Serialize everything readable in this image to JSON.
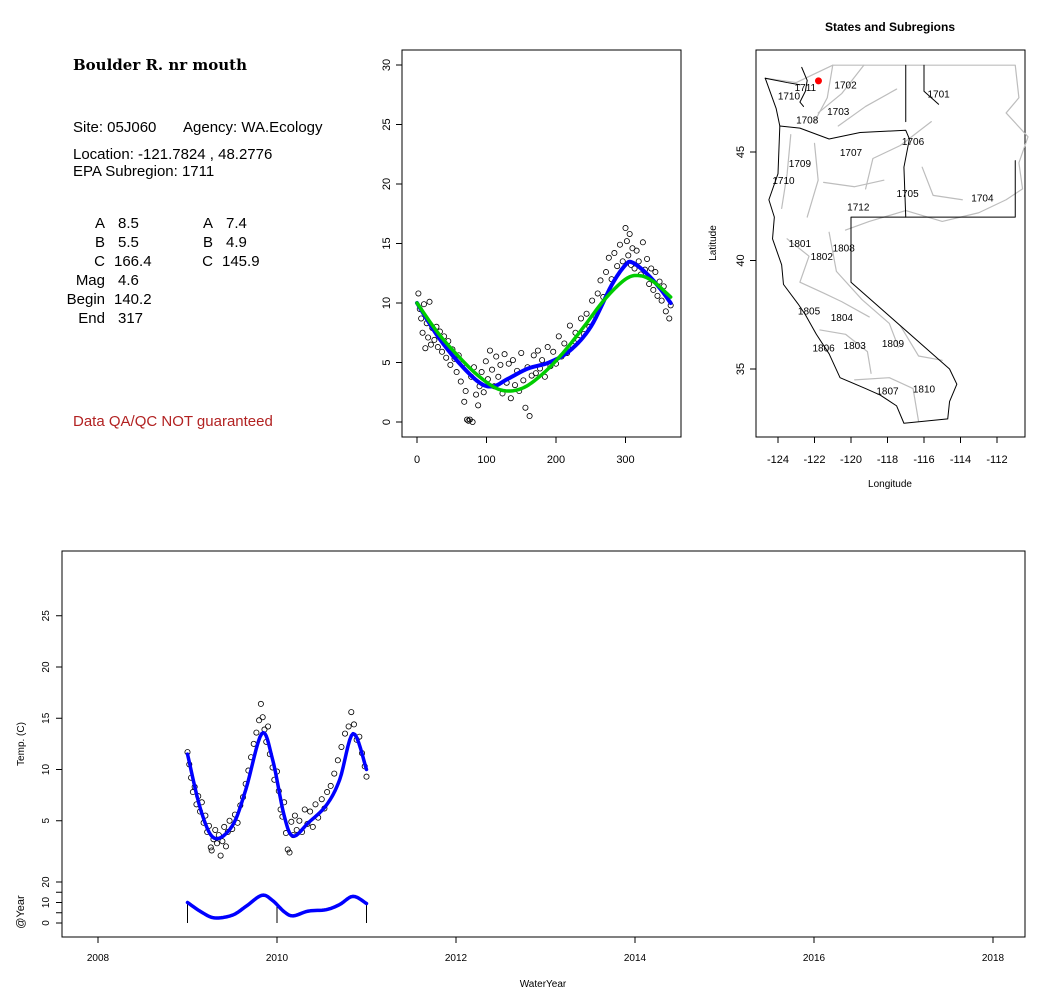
{
  "site_info": {
    "title": "Boulder R. nr mouth",
    "site": "Site: 05J060",
    "agency": "Agency: WA.Ecology",
    "location": "Location: -121.7824 , 48.2776",
    "subregion": "EPA Subregion: 1711",
    "qa_note": "Data QA/QC NOT guaranteed",
    "params_left": [
      {
        "label": "A",
        "value": "8.5"
      },
      {
        "label": "B",
        "value": "5.5"
      },
      {
        "label": "C",
        "value": "166.4"
      },
      {
        "label": "Mag",
        "value": "4.6"
      },
      {
        "label": "Begin",
        "value": "140.2"
      },
      {
        "label": "End",
        "value": "317"
      }
    ],
    "params_right": [
      {
        "label": "A",
        "value": "7.4"
      },
      {
        "label": "B",
        "value": "4.9"
      },
      {
        "label": "C",
        "value": "145.9"
      }
    ]
  },
  "chart_data": [
    {
      "type": "scatter",
      "title": "",
      "xlabel": "",
      "ylabel": "",
      "xlim": [
        -5,
        370
      ],
      "ylim": [
        -1,
        31
      ],
      "xticks": [
        "0",
        "100",
        "200",
        "300"
      ],
      "yticks": [
        "0",
        "5",
        "10",
        "15",
        "20",
        "25",
        "30"
      ],
      "points": [
        [
          2,
          10.8
        ],
        [
          4,
          9.5
        ],
        [
          6,
          8.7
        ],
        [
          8,
          7.5
        ],
        [
          10,
          9.9
        ],
        [
          12,
          6.2
        ],
        [
          14,
          8.3
        ],
        [
          16,
          7.1
        ],
        [
          18,
          10.1
        ],
        [
          20,
          6.5
        ],
        [
          22,
          7.9
        ],
        [
          25,
          6.9
        ],
        [
          28,
          8.0
        ],
        [
          30,
          6.3
        ],
        [
          33,
          7.6
        ],
        [
          36,
          5.9
        ],
        [
          39,
          7.2
        ],
        [
          42,
          5.4
        ],
        [
          45,
          6.8
        ],
        [
          48,
          4.8
        ],
        [
          51,
          6.1
        ],
        [
          54,
          5.3
        ],
        [
          57,
          4.2
        ],
        [
          60,
          5.6
        ],
        [
          63,
          3.4
        ],
        [
          66,
          4.9
        ],
        [
          68,
          1.7
        ],
        [
          70,
          2.6
        ],
        [
          72,
          0.2
        ],
        [
          74,
          0.1
        ],
        [
          76,
          0.2
        ],
        [
          78,
          3.8
        ],
        [
          80,
          0.0
        ],
        [
          82,
          4.6
        ],
        [
          85,
          2.3
        ],
        [
          88,
          1.4
        ],
        [
          90,
          3.0
        ],
        [
          93,
          4.2
        ],
        [
          96,
          2.5
        ],
        [
          99,
          5.1
        ],
        [
          102,
          3.6
        ],
        [
          105,
          6.0
        ],
        [
          108,
          4.4
        ],
        [
          111,
          3.0
        ],
        [
          114,
          5.5
        ],
        [
          117,
          3.8
        ],
        [
          120,
          4.8
        ],
        [
          123,
          2.4
        ],
        [
          126,
          5.7
        ],
        [
          129,
          3.3
        ],
        [
          132,
          4.9
        ],
        [
          135,
          2.0
        ],
        [
          138,
          5.2
        ],
        [
          141,
          3.1
        ],
        [
          144,
          4.3
        ],
        [
          147,
          2.6
        ],
        [
          150,
          5.8
        ],
        [
          153,
          3.5
        ],
        [
          156,
          1.2
        ],
        [
          159,
          4.6
        ],
        [
          162,
          0.5
        ],
        [
          165,
          3.9
        ],
        [
          168,
          5.6
        ],
        [
          171,
          4.1
        ],
        [
          174,
          6.0
        ],
        [
          177,
          4.5
        ],
        [
          180,
          5.2
        ],
        [
          184,
          3.8
        ],
        [
          188,
          6.3
        ],
        [
          192,
          4.7
        ],
        [
          196,
          5.9
        ],
        [
          200,
          4.9
        ],
        [
          204,
          7.2
        ],
        [
          208,
          5.5
        ],
        [
          212,
          6.6
        ],
        [
          216,
          5.8
        ],
        [
          220,
          8.1
        ],
        [
          224,
          6.4
        ],
        [
          228,
          7.5
        ],
        [
          232,
          6.9
        ],
        [
          236,
          8.7
        ],
        [
          240,
          7.4
        ],
        [
          244,
          9.1
        ],
        [
          248,
          8.0
        ],
        [
          252,
          10.2
        ],
        [
          256,
          9.0
        ],
        [
          260,
          10.8
        ],
        [
          264,
          11.9
        ],
        [
          268,
          10.5
        ],
        [
          272,
          12.6
        ],
        [
          276,
          13.8
        ],
        [
          280,
          12.0
        ],
        [
          284,
          14.2
        ],
        [
          288,
          13.1
        ],
        [
          292,
          14.9
        ],
        [
          296,
          13.5
        ],
        [
          300,
          16.3
        ],
        [
          302,
          15.2
        ],
        [
          304,
          14.0
        ],
        [
          306,
          15.8
        ],
        [
          308,
          13.2
        ],
        [
          310,
          14.6
        ],
        [
          313,
          12.9
        ],
        [
          316,
          14.4
        ],
        [
          319,
          13.5
        ],
        [
          322,
          12.4
        ],
        [
          325,
          15.1
        ],
        [
          328,
          12.8
        ],
        [
          331,
          13.7
        ],
        [
          334,
          11.6
        ],
        [
          337,
          12.9
        ],
        [
          340,
          11.1
        ],
        [
          343,
          12.6
        ],
        [
          346,
          10.6
        ],
        [
          349,
          11.8
        ],
        [
          352,
          10.2
        ],
        [
          355,
          11.4
        ],
        [
          358,
          9.3
        ],
        [
          361,
          10.5
        ],
        [
          363,
          8.7
        ],
        [
          365,
          9.8
        ]
      ],
      "series": [
        {
          "name": "fit-blue",
          "color": "#0000ff",
          "x": [
            0,
            30,
            60,
            90,
            110,
            130,
            160,
            190,
            220,
            250,
            280,
            300,
            310,
            330,
            350,
            365
          ],
          "y": [
            10,
            7.2,
            5,
            3.3,
            3,
            3.6,
            4.5,
            5,
            6,
            8,
            11.5,
            13.2,
            13.4,
            12.5,
            11.2,
            10
          ]
        },
        {
          "name": "fit-green",
          "color": "#00cc00",
          "x": [
            0,
            30,
            60,
            90,
            120,
            150,
            180,
            210,
            240,
            270,
            300,
            320,
            340,
            365
          ],
          "y": [
            10,
            7.5,
            5.5,
            3.8,
            2.7,
            2.8,
            4,
            5.8,
            8,
            10.3,
            12,
            12.3,
            11.8,
            10.5
          ]
        }
      ]
    },
    {
      "type": "map",
      "title": "States and Subregions",
      "xlabel": "Longitude",
      "ylabel": "Latitude",
      "xlim": [
        -125.2,
        -110.5
      ],
      "ylim": [
        32.3,
        49.6
      ],
      "xticks": [
        "-124",
        "-122",
        "-120",
        "-118",
        "-116",
        "-114",
        "-112"
      ],
      "yticks": [
        "35",
        "40",
        "45"
      ],
      "site": {
        "lon": -121.7824,
        "lat": 48.2776,
        "color": "#ff0000"
      },
      "labels": [
        {
          "text": "1711",
          "lon": -122.5,
          "lat": 48.0
        },
        {
          "text": "1702",
          "lon": -120.3,
          "lat": 48.1
        },
        {
          "text": "1701",
          "lon": -115.2,
          "lat": 47.7
        },
        {
          "text": "1710",
          "lon": -123.4,
          "lat": 47.6
        },
        {
          "text": "1703",
          "lon": -120.7,
          "lat": 46.9
        },
        {
          "text": "1708",
          "lon": -122.4,
          "lat": 46.5
        },
        {
          "text": "1706",
          "lon": -116.6,
          "lat": 45.5
        },
        {
          "text": "1707",
          "lon": -120.0,
          "lat": 45.0
        },
        {
          "text": "1709",
          "lon": -122.8,
          "lat": 44.5
        },
        {
          "text": "1710",
          "lon": -123.7,
          "lat": 43.7
        },
        {
          "text": "1705",
          "lon": -116.9,
          "lat": 43.1
        },
        {
          "text": "1704",
          "lon": -112.8,
          "lat": 42.9
        },
        {
          "text": "1712",
          "lon": -119.6,
          "lat": 42.5
        },
        {
          "text": "1801",
          "lon": -122.8,
          "lat": 40.8
        },
        {
          "text": "1808",
          "lon": -120.4,
          "lat": 40.6
        },
        {
          "text": "1802",
          "lon": -121.6,
          "lat": 40.2
        },
        {
          "text": "1805",
          "lon": -122.3,
          "lat": 37.7
        },
        {
          "text": "1804",
          "lon": -120.5,
          "lat": 37.4
        },
        {
          "text": "1806",
          "lon": -121.5,
          "lat": 36.0
        },
        {
          "text": "1803",
          "lon": -119.8,
          "lat": 36.1
        },
        {
          "text": "1809",
          "lon": -117.7,
          "lat": 36.2
        },
        {
          "text": "1807",
          "lon": -118.0,
          "lat": 34.0
        },
        {
          "text": "1810",
          "lon": -116.0,
          "lat": 34.1
        }
      ]
    },
    {
      "type": "line",
      "title": "",
      "xlabel": "WaterYear",
      "ylabel": "Temp. (C)",
      "ylabel2": "@Year",
      "xlim": [
        2007.6,
        2018.4
      ],
      "xticks": [
        "2008",
        "2010",
        "2012",
        "2014",
        "2016",
        "2018"
      ],
      "yticks": [
        "5",
        "10",
        "15",
        "20",
        "25"
      ],
      "yticks2": [
        "0",
        "10",
        "20"
      ],
      "points": [
        [
          2009.0,
          11.7
        ],
        [
          2009.02,
          10.5
        ],
        [
          2009.04,
          9.2
        ],
        [
          2009.06,
          7.8
        ],
        [
          2009.08,
          8.3
        ],
        [
          2009.1,
          6.6
        ],
        [
          2009.12,
          7.4
        ],
        [
          2009.14,
          5.9
        ],
        [
          2009.16,
          6.8
        ],
        [
          2009.18,
          4.8
        ],
        [
          2009.2,
          5.5
        ],
        [
          2009.22,
          3.9
        ],
        [
          2009.24,
          4.5
        ],
        [
          2009.26,
          2.4
        ],
        [
          2009.27,
          2.1
        ],
        [
          2009.29,
          3.2
        ],
        [
          2009.31,
          4.1
        ],
        [
          2009.33,
          2.8
        ],
        [
          2009.35,
          3.6
        ],
        [
          2009.37,
          1.6
        ],
        [
          2009.39,
          3.0
        ],
        [
          2009.41,
          4.4
        ],
        [
          2009.43,
          2.5
        ],
        [
          2009.45,
          3.9
        ],
        [
          2009.47,
          5.0
        ],
        [
          2009.5,
          4.2
        ],
        [
          2009.53,
          5.6
        ],
        [
          2009.56,
          4.8
        ],
        [
          2009.59,
          6.5
        ],
        [
          2009.62,
          7.3
        ],
        [
          2009.65,
          8.6
        ],
        [
          2009.68,
          9.9
        ],
        [
          2009.71,
          11.2
        ],
        [
          2009.74,
          12.5
        ],
        [
          2009.77,
          13.6
        ],
        [
          2009.8,
          14.8
        ],
        [
          2009.82,
          16.4
        ],
        [
          2009.84,
          15.1
        ],
        [
          2009.86,
          13.9
        ],
        [
          2009.88,
          12.7
        ],
        [
          2009.9,
          14.2
        ],
        [
          2009.92,
          11.5
        ],
        [
          2009.95,
          10.2
        ],
        [
          2009.97,
          9.0
        ],
        [
          2010.0,
          9.8
        ],
        [
          2010.02,
          7.9
        ],
        [
          2010.04,
          6.1
        ],
        [
          2010.06,
          5.4
        ],
        [
          2010.08,
          6.8
        ],
        [
          2010.1,
          3.8
        ],
        [
          2010.12,
          2.2
        ],
        [
          2010.14,
          1.9
        ],
        [
          2010.16,
          4.9
        ],
        [
          2010.18,
          3.6
        ],
        [
          2010.2,
          5.5
        ],
        [
          2010.22,
          4.1
        ],
        [
          2010.25,
          5.0
        ],
        [
          2010.28,
          3.9
        ],
        [
          2010.31,
          6.1
        ],
        [
          2010.34,
          4.7
        ],
        [
          2010.37,
          5.9
        ],
        [
          2010.4,
          4.4
        ],
        [
          2010.43,
          6.6
        ],
        [
          2010.46,
          5.3
        ],
        [
          2010.5,
          7.1
        ],
        [
          2010.53,
          6.2
        ],
        [
          2010.56,
          7.8
        ],
        [
          2010.6,
          8.4
        ],
        [
          2010.64,
          9.6
        ],
        [
          2010.68,
          10.9
        ],
        [
          2010.72,
          12.2
        ],
        [
          2010.76,
          13.5
        ],
        [
          2010.8,
          14.2
        ],
        [
          2010.83,
          15.6
        ],
        [
          2010.86,
          14.4
        ],
        [
          2010.89,
          12.9
        ],
        [
          2010.92,
          13.2
        ],
        [
          2010.95,
          11.6
        ],
        [
          2010.98,
          10.3
        ],
        [
          2011.0,
          9.3
        ]
      ],
      "series": [
        {
          "name": "temp-fit",
          "color": "#0000ff",
          "x": [
            2009.0,
            2009.15,
            2009.3,
            2009.5,
            2009.65,
            2009.83,
            2009.95,
            2010.08,
            2010.18,
            2010.35,
            2010.55,
            2010.7,
            2010.85,
            2011.0
          ],
          "y": [
            11.5,
            6,
            3.3,
            4.5,
            8,
            13.5,
            11,
            5.5,
            3.5,
            4.8,
            6.5,
            9,
            13.5,
            10
          ]
        },
        {
          "name": "year-fit",
          "color": "#0000ff",
          "x": [
            2009.0,
            2009.15,
            2009.3,
            2009.5,
            2009.65,
            2009.83,
            2009.95,
            2010.08,
            2010.18,
            2010.35,
            2010.55,
            2010.7,
            2010.85,
            2011.0
          ],
          "y": [
            10,
            5.5,
            2.5,
            3.8,
            8,
            13.5,
            11,
            5.5,
            3.5,
            5.8,
            6.5,
            9,
            13,
            9.5
          ]
        }
      ],
      "year_markers": [
        2009,
        2010,
        2011
      ]
    }
  ]
}
